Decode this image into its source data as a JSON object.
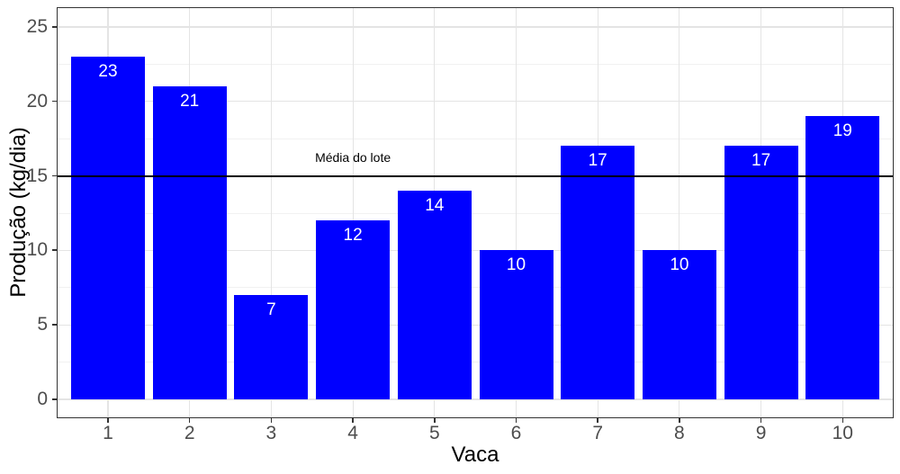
{
  "chart_data": {
    "type": "bar",
    "title": "",
    "xlabel": "Vaca",
    "ylabel": "Produção (kg/dia)",
    "categories": [
      "1",
      "2",
      "3",
      "4",
      "5",
      "6",
      "7",
      "8",
      "9",
      "10"
    ],
    "values": [
      23,
      21,
      7,
      12,
      14,
      10,
      17,
      10,
      17,
      19
    ],
    "bar_labels": [
      "23",
      "21",
      "7",
      "12",
      "14",
      "10",
      "17",
      "10",
      "17",
      "19"
    ],
    "yticks": [
      0,
      5,
      10,
      15,
      20,
      25
    ],
    "ylim": [
      0,
      25
    ],
    "legend_position": "none",
    "grid": {
      "horizontal": "major+minor",
      "vertical": "major-only"
    },
    "reference_line": {
      "value": 15,
      "label": "Média do lote",
      "label_x": 4,
      "label_y": 16.2,
      "color": "#000000"
    },
    "colors": {
      "bar": "#0000FF",
      "bar_label": "#FFFFFF",
      "tick_label": "#4D4D4D",
      "axis_title": "#000000",
      "panel_border": "#333333",
      "grid_major": "#E4E4E4",
      "grid_minor": "#F1F1F1",
      "background": "#FFFFFF"
    }
  }
}
